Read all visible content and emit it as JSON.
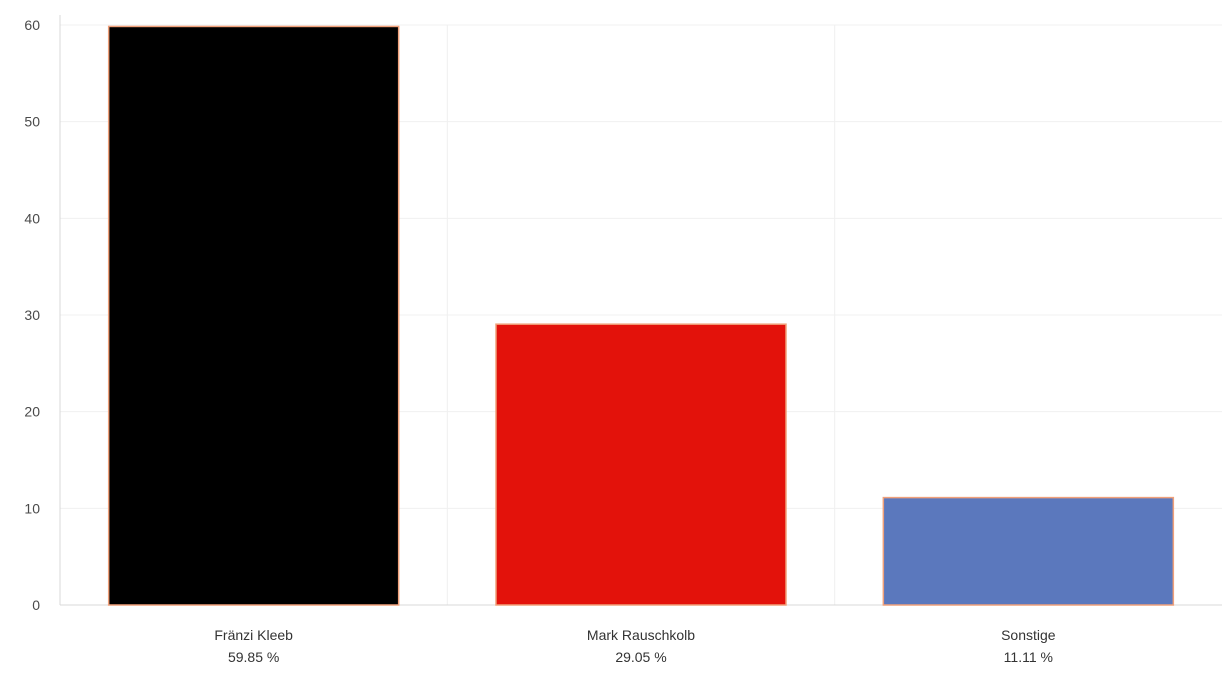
{
  "chart_data": {
    "type": "bar",
    "title": "",
    "xlabel": "",
    "ylabel": "",
    "ylim": [
      0,
      60
    ],
    "yticks": [
      0,
      10,
      20,
      30,
      40,
      50,
      60
    ],
    "yticks_labels": [
      "0",
      "10",
      "20",
      "30",
      "40",
      "50",
      "60"
    ],
    "grid": true,
    "legend": "none",
    "categories": [
      "Fränzi Kleeb",
      "Mark Rauschkolb",
      "Sonstige"
    ],
    "values": [
      59.85,
      29.05,
      11.11
    ],
    "value_labels": [
      "59.85 %",
      "29.05 %",
      "11.11 %"
    ],
    "colors": [
      "#000000",
      "#e3120b",
      "#5b78bd"
    ],
    "bar_edge_color": "#f0a07a",
    "gridline_color": "#f0f0f0",
    "axis_color": "#d8d8d8"
  }
}
